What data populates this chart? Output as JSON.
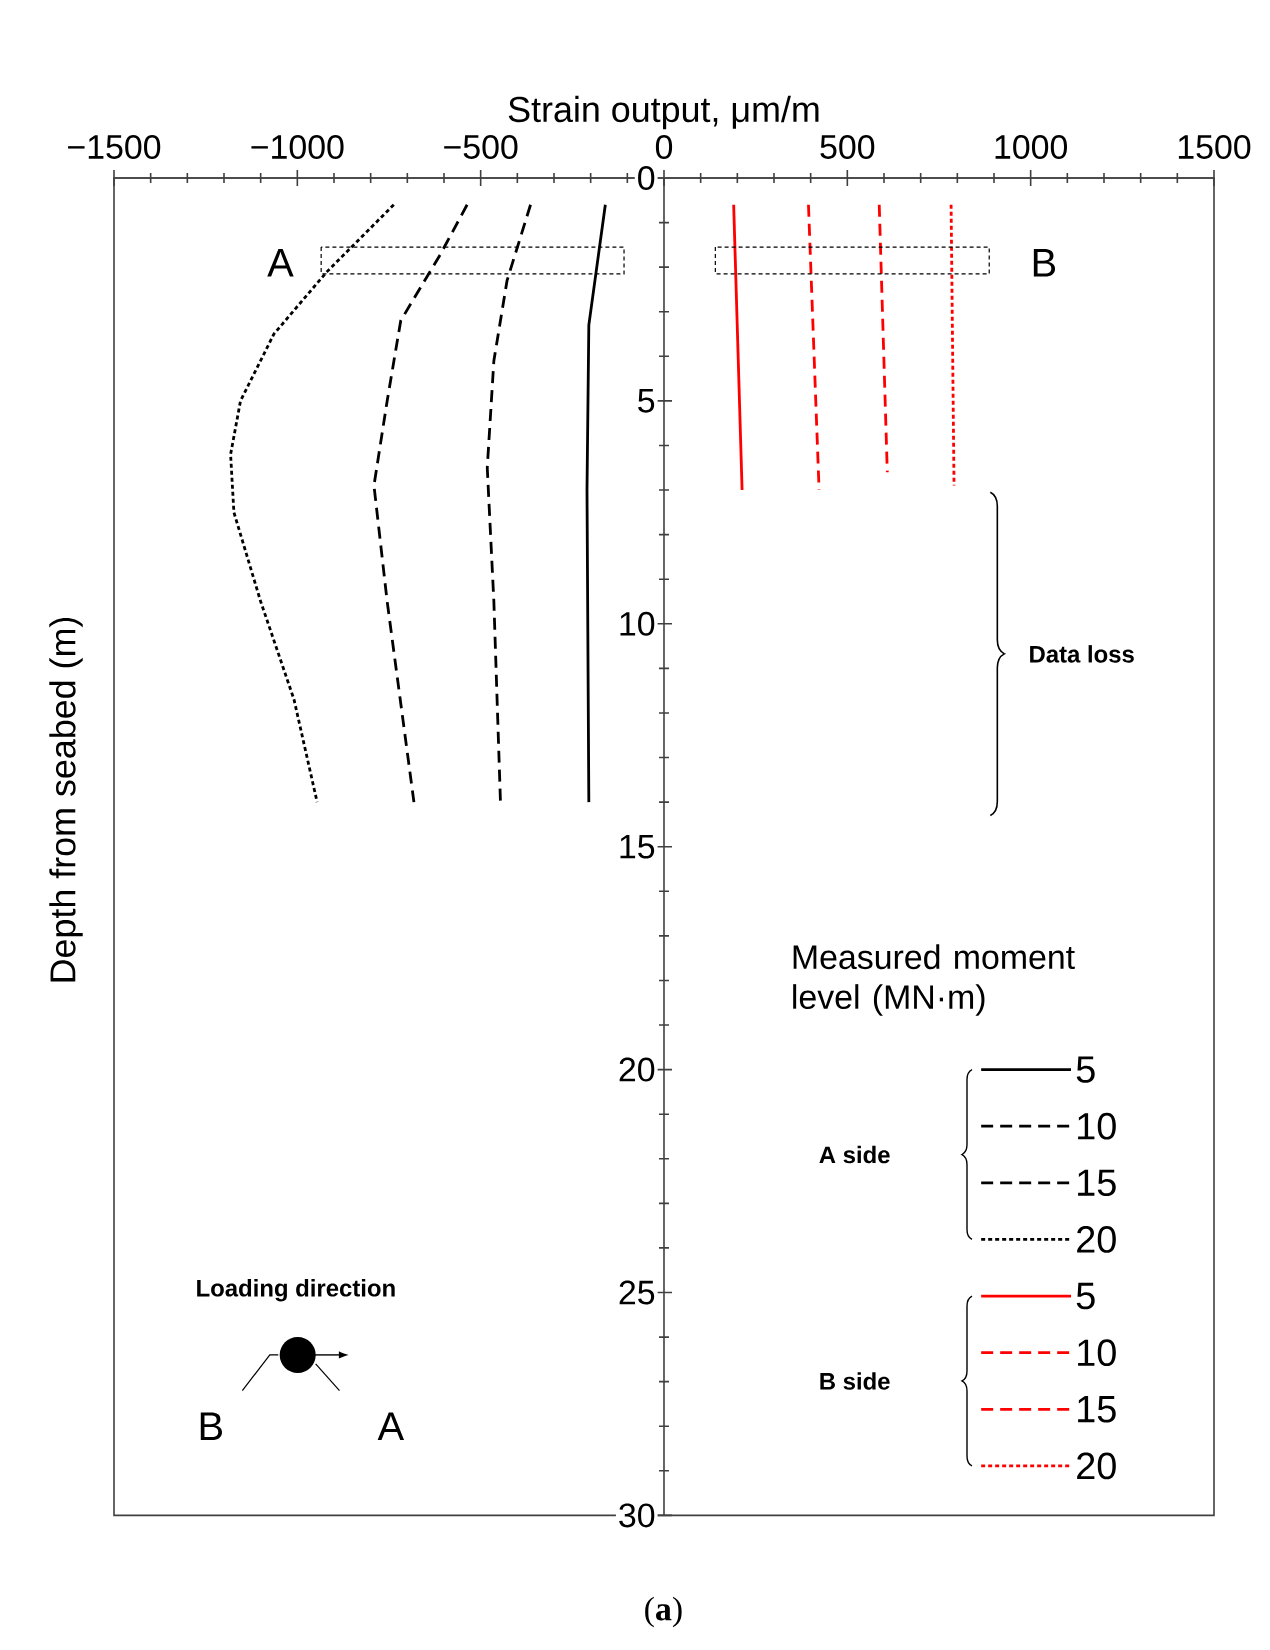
{
  "chart_data": {
    "type": "line",
    "xlabel": "Strain output, μm/m",
    "ylabel": "Depth from seabed (m)",
    "legend_title": "Measured moment level (MN·m)",
    "xlim": [
      -1500,
      1500
    ],
    "xticks": [
      {
        "value": -1500,
        "label": "−1500"
      },
      {
        "value": -1000,
        "label": "−1000"
      },
      {
        "value": -500,
        "label": "−500"
      },
      0,
      500,
      1000,
      1500
    ],
    "ylim": [
      30,
      0
    ],
    "yticks": [
      0,
      5,
      10,
      15,
      20,
      25,
      30
    ],
    "legend": "bottom right",
    "series": [
      {
        "name": "5",
        "color": "#000000",
        "line_style": "solid",
        "x": [
          -160,
          -205,
          -210,
          -205
        ],
        "values": [
          0.6,
          3.3,
          7.0,
          14.0
        ]
      },
      {
        "name": "10",
        "color": "#000000",
        "line_style": "dashed",
        "x": [
          -364,
          -428,
          -464,
          -482,
          -464,
          -446
        ],
        "values": [
          0.6,
          2.3,
          4.1,
          6.5,
          9.5,
          14.0
        ]
      },
      {
        "name": "15",
        "color": "#000000",
        "line_style": "dashed",
        "x": [
          -537,
          -609,
          -718,
          -755,
          -791,
          -755,
          -682
        ],
        "values": [
          0.6,
          1.7,
          3.2,
          5.0,
          6.9,
          9.5,
          14.0
        ]
      },
      {
        "name": "20",
        "color": "#000000",
        "line_style": "dotted",
        "x": [
          -737,
          -919,
          -1064,
          -1155,
          -1182,
          -1173,
          -1100,
          -1009,
          -946
        ],
        "values": [
          0.6,
          2.1,
          3.5,
          5.0,
          6.2,
          7.5,
          9.5,
          11.7,
          14.0
        ]
      },
      {
        "name": "5",
        "color": "#ff0000",
        "line_style": "solid",
        "x": [
          190,
          213
        ],
        "values": [
          0.6,
          7.0
        ]
      },
      {
        "name": "10",
        "color": "#ff0000",
        "line_style": "dashed",
        "x": [
          394,
          423
        ],
        "values": [
          0.6,
          7.0
        ]
      },
      {
        "name": "15",
        "color": "#ff0000",
        "line_style": "dashed",
        "x": [
          587,
          609
        ],
        "values": [
          0.6,
          6.6
        ]
      },
      {
        "name": "20",
        "color": "#ff0000",
        "line_style": "dotted",
        "x": [
          783,
          791
        ],
        "values": [
          0.6,
          6.9
        ]
      }
    ],
    "annotations": [
      "A",
      "B",
      "Data loss",
      "A side",
      "B side",
      "Loading direction",
      "B",
      "A",
      "(**a**)"
    ]
  }
}
